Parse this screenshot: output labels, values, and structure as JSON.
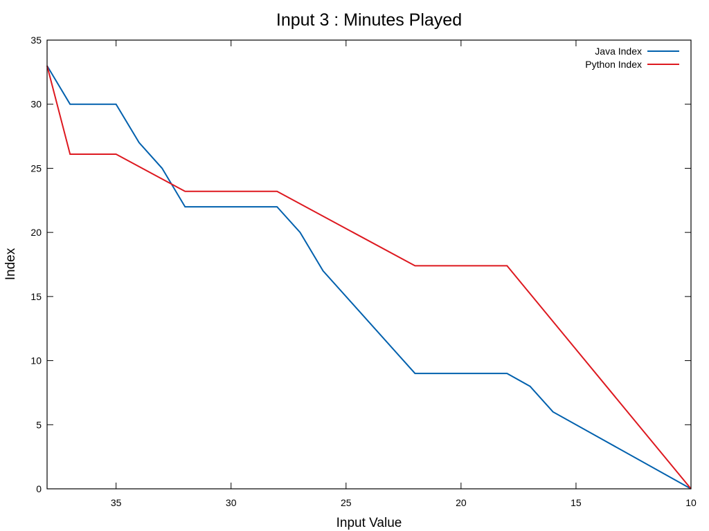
{
  "chart_data": {
    "type": "line",
    "title": "Input 3 : Minutes Played",
    "xlabel": "Input Value",
    "ylabel": "Index",
    "xlim": [
      38,
      10
    ],
    "x_reversed": true,
    "ylim": [
      0,
      35
    ],
    "xticks": [
      35,
      30,
      25,
      20,
      15,
      10
    ],
    "yticks": [
      0,
      5,
      10,
      15,
      20,
      25,
      30,
      35
    ],
    "grid": false,
    "legend_position": "top-right",
    "series": [
      {
        "name": "Java Index",
        "color": "#0060ad",
        "points": [
          [
            38,
            33
          ],
          [
            37,
            30
          ],
          [
            35,
            30
          ],
          [
            34,
            27
          ],
          [
            33,
            25
          ],
          [
            32,
            22
          ],
          [
            28,
            22
          ],
          [
            27,
            20
          ],
          [
            26,
            17
          ],
          [
            22,
            9
          ],
          [
            18,
            9
          ],
          [
            17,
            8
          ],
          [
            16,
            6
          ],
          [
            10,
            0
          ]
        ]
      },
      {
        "name": "Python Index",
        "color": "#dd181f",
        "points": [
          [
            38,
            33
          ],
          [
            37,
            26.1
          ],
          [
            35,
            26.1
          ],
          [
            32,
            23.2
          ],
          [
            28,
            23.2
          ],
          [
            22,
            17.4
          ],
          [
            18,
            17.4
          ],
          [
            10,
            0
          ]
        ]
      }
    ]
  }
}
